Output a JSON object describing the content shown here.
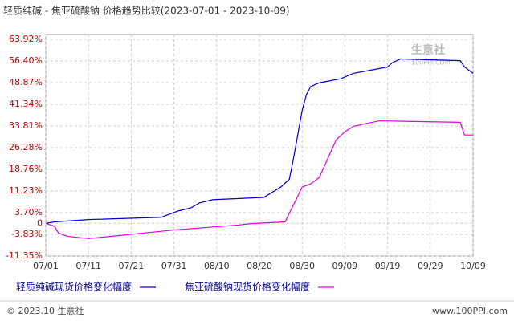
{
  "chart_data": {
    "type": "line",
    "title": "轻质纯碱 - 焦亚硫酸钠 价格趋势比较(2023-07-01 - 2023-10-09)",
    "watermark": "生意社",
    "watermark_sub": "100PPI.COM",
    "footer_left": "© 2023.10 生意社",
    "footer_right": "www.100PPI.com",
    "xlim": [
      "07/01",
      "10/09"
    ],
    "xticks": [
      "07/01",
      "07/11",
      "07/21",
      "07/31",
      "08/10",
      "08/20",
      "08/30",
      "09/09",
      "09/19",
      "09/29",
      "10/09"
    ],
    "ylim": [
      -11.35,
      63.92
    ],
    "yticks": [
      {
        "value": 63.92,
        "label": "63.92%"
      },
      {
        "value": 56.4,
        "label": "56.40%"
      },
      {
        "value": 48.87,
        "label": "48.87%"
      },
      {
        "value": 41.34,
        "label": "41.34%"
      },
      {
        "value": 33.81,
        "label": "33.81%"
      },
      {
        "value": 26.28,
        "label": "26.28%"
      },
      {
        "value": 18.76,
        "label": "18.76%"
      },
      {
        "value": 11.23,
        "label": "11.23%"
      },
      {
        "value": 3.7,
        "label": "3.70%"
      },
      0,
      {
        "value": -3.83,
        "label": "-3.83%"
      },
      {
        "value": -11.35,
        "label": "-11.35%"
      }
    ],
    "grid": true,
    "series": [
      {
        "name": "轻质纯碱现货价格变化幅度",
        "color": "#0000cc",
        "x": [
          "07/01",
          "07/03",
          "07/11",
          "07/28",
          "08/01",
          "08/04",
          "08/06",
          "08/09",
          "08/21",
          "08/25",
          "08/27",
          "08/28",
          "08/30",
          "08/31",
          "09/01",
          "09/03",
          "09/08",
          "09/11",
          "09/19",
          "09/20",
          "09/22",
          "10/06",
          "10/07",
          "10/09"
        ],
        "values": [
          0,
          0.5,
          1.3,
          2.1,
          4.3,
          5.4,
          7.1,
          8.2,
          9.0,
          12.6,
          15.3,
          22.7,
          39.2,
          44.7,
          47.5,
          48.8,
          50.2,
          52.1,
          54.3,
          55.7,
          57.1,
          56.5,
          54.3,
          52.1
        ]
      },
      {
        "name": "焦亚硫酸钠现货价格变化幅度",
        "color": "#e000e0",
        "x": [
          "07/01",
          "07/03",
          "07/04",
          "07/06",
          "07/11",
          "07/31",
          "08/15",
          "08/18",
          "08/26",
          "08/30",
          "09/01",
          "09/03",
          "09/07",
          "09/09",
          "09/11",
          "09/17",
          "10/06",
          "10/07",
          "10/09"
        ],
        "values": [
          0,
          -1.0,
          -3.4,
          -4.5,
          -5.3,
          -2.3,
          -0.6,
          -0.1,
          0.5,
          12.6,
          13.7,
          15.9,
          29.1,
          31.8,
          33.7,
          35.6,
          35.1,
          30.7,
          30.7
        ]
      }
    ]
  }
}
